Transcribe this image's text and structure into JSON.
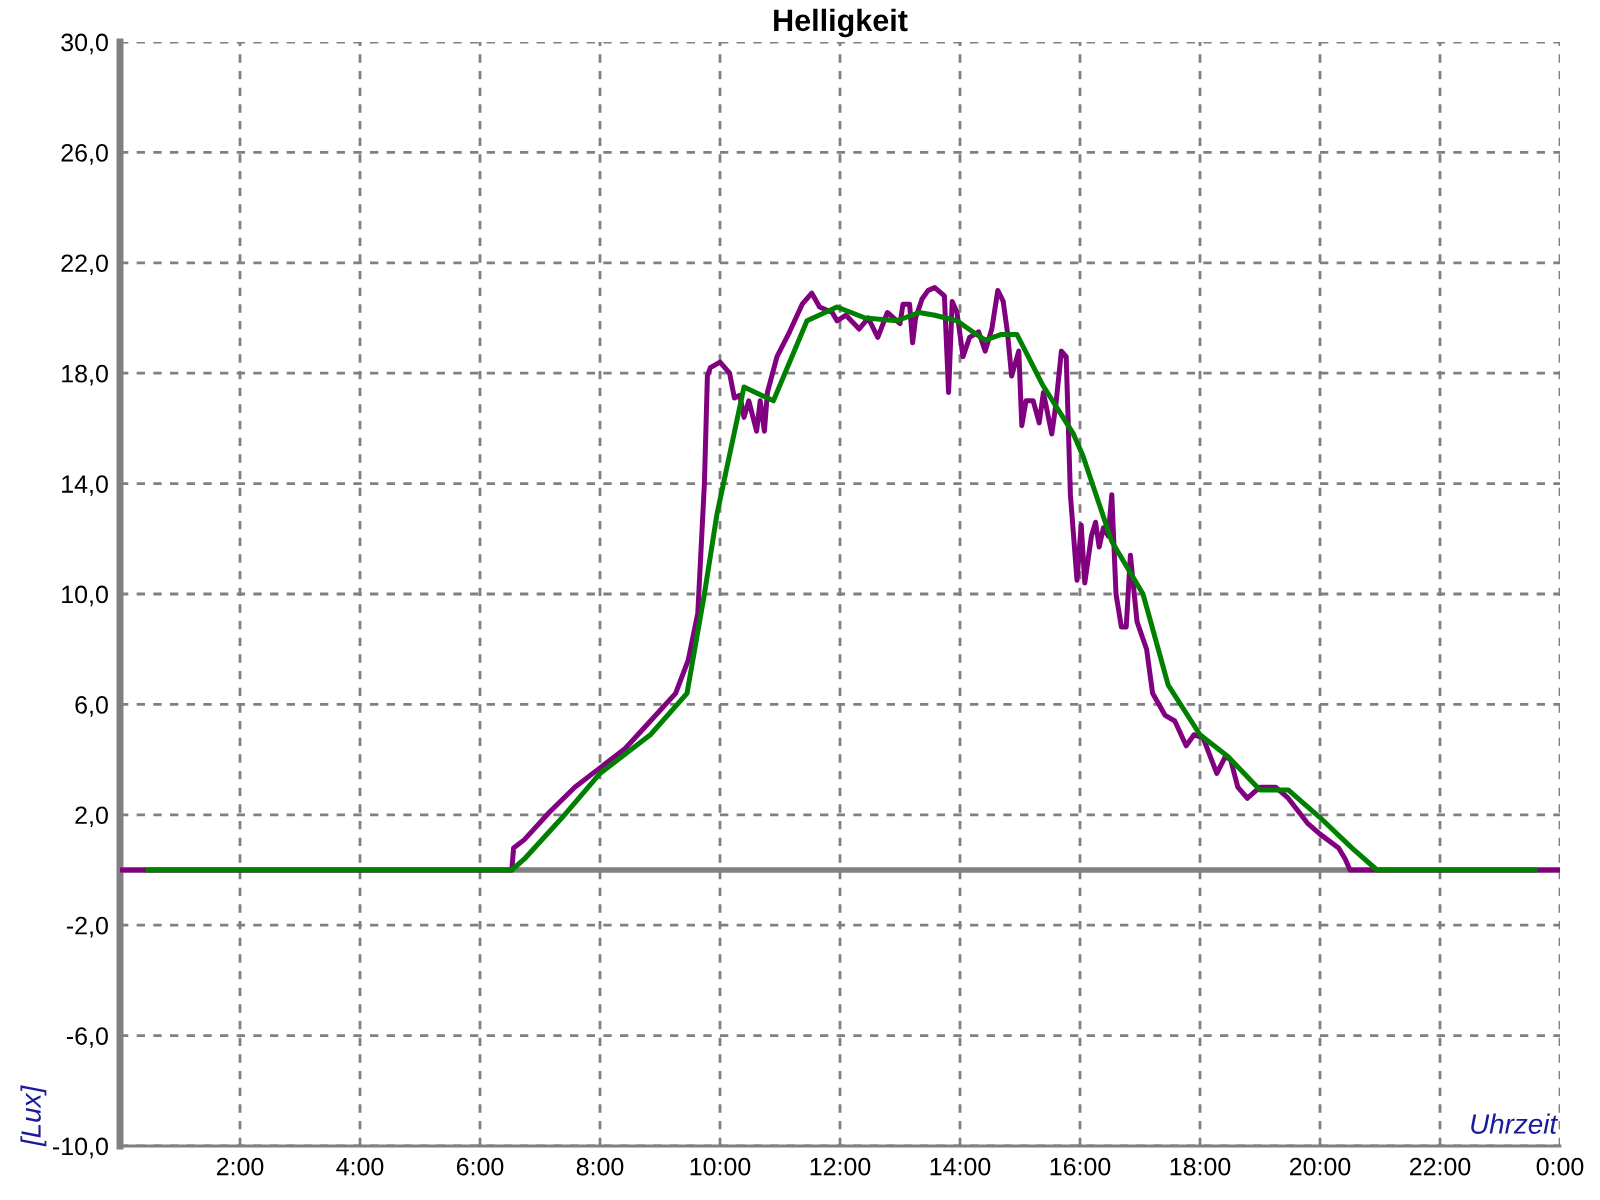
{
  "chart_data": {
    "type": "line",
    "title": "Helligkeit",
    "xlabel": "Uhrzeit",
    "ylabel": "[Lux]",
    "xlim": [
      0,
      24
    ],
    "ylim": [
      -10,
      30
    ],
    "xticks": [
      {
        "value": 0,
        "label": null
      },
      {
        "value": 2,
        "label": "2:00"
      },
      {
        "value": 4,
        "label": "4:00"
      },
      {
        "value": 6,
        "label": "6:00"
      },
      {
        "value": 8,
        "label": "8:00"
      },
      {
        "value": 10,
        "label": "10:00"
      },
      {
        "value": 12,
        "label": "12:00"
      },
      {
        "value": 14,
        "label": "14:00"
      },
      {
        "value": 16,
        "label": "16:00"
      },
      {
        "value": 18,
        "label": "18:00"
      },
      {
        "value": 20,
        "label": "20:00"
      },
      {
        "value": 22,
        "label": "22:00"
      },
      {
        "value": 24,
        "label": "0:00"
      }
    ],
    "yticks": [
      {
        "value": -10,
        "label": "-10,0"
      },
      {
        "value": -6,
        "label": "-6,0"
      },
      {
        "value": -2,
        "label": "-2,0"
      },
      {
        "value": 2,
        "label": "2,0"
      },
      {
        "value": 6,
        "label": "6,0"
      },
      {
        "value": 10,
        "label": "10,0"
      },
      {
        "value": 14,
        "label": "14,0"
      },
      {
        "value": 18,
        "label": "18,0"
      },
      {
        "value": 22,
        "label": "22,0"
      },
      {
        "value": 26,
        "label": "26,0"
      },
      {
        "value": 30,
        "label": "30,0"
      }
    ],
    "grid": true,
    "ref_lines": [
      {
        "axis": "y",
        "value": 0,
        "color": "#808080"
      }
    ],
    "series": [
      {
        "color": "#800080",
        "x": [
          0.0,
          6.53,
          6.56,
          6.74,
          7.16,
          7.58,
          8.0,
          8.42,
          8.84,
          9.26,
          9.47,
          9.63,
          9.74,
          9.79,
          9.84,
          10.0,
          10.16,
          10.24,
          10.33,
          10.4,
          10.48,
          10.61,
          10.67,
          10.74,
          10.79,
          10.95,
          11.16,
          11.37,
          11.53,
          11.66,
          11.87,
          11.95,
          12.1,
          12.32,
          12.47,
          12.63,
          12.79,
          13.0,
          13.05,
          13.16,
          13.21,
          13.26,
          13.37,
          13.47,
          13.58,
          13.74,
          13.81,
          13.87,
          13.95,
          14.05,
          14.16,
          14.31,
          14.42,
          14.53,
          14.63,
          14.72,
          14.79,
          14.86,
          14.98,
          15.03,
          15.1,
          15.22,
          15.32,
          15.39,
          15.53,
          15.6,
          15.69,
          15.77,
          15.84,
          15.95,
          16.02,
          16.08,
          16.19,
          16.26,
          16.32,
          16.39,
          16.47,
          16.53,
          16.6,
          16.69,
          16.77,
          16.84,
          16.95,
          17.11,
          17.21,
          17.42,
          17.58,
          17.77,
          17.9,
          18.05,
          18.28,
          18.42,
          18.51,
          18.63,
          18.79,
          19.0,
          19.26,
          19.47,
          19.79,
          20.0,
          20.31,
          20.42,
          20.5,
          24.0
        ],
        "values": [
          0,
          0,
          0.8,
          1.1,
          2.1,
          3.0,
          3.7,
          4.4,
          5.4,
          6.4,
          7.6,
          9.3,
          14.0,
          17.9,
          18.2,
          18.4,
          18.0,
          17.1,
          17.2,
          16.4,
          17.0,
          15.9,
          17.0,
          15.9,
          17.3,
          18.6,
          19.5,
          20.5,
          20.9,
          20.4,
          20.2,
          19.9,
          20.1,
          19.6,
          20.0,
          19.3,
          20.2,
          19.8,
          20.5,
          20.5,
          19.1,
          20.0,
          20.7,
          21.0,
          21.1,
          20.8,
          17.3,
          20.6,
          20.2,
          18.6,
          19.3,
          19.5,
          18.8,
          19.6,
          21.0,
          20.6,
          19.5,
          17.9,
          18.8,
          16.1,
          17.0,
          17.0,
          16.2,
          17.3,
          15.8,
          16.9,
          18.8,
          18.6,
          13.6,
          10.5,
          12.5,
          10.4,
          12.1,
          12.6,
          11.7,
          12.4,
          12.1,
          13.6,
          10.0,
          8.8,
          8.8,
          11.4,
          9.0,
          8.0,
          6.4,
          5.6,
          5.4,
          4.5,
          4.9,
          4.8,
          3.5,
          4.1,
          4.0,
          3.0,
          2.6,
          3.0,
          3.0,
          2.6,
          1.7,
          1.3,
          0.8,
          0.4,
          0,
          0
        ]
      },
      {
        "color": "#008000",
        "x": [
          0.47,
          6.53,
          6.74,
          7.37,
          8.0,
          8.84,
          9.45,
          9.74,
          9.95,
          10.4,
          10.89,
          11.45,
          11.95,
          12.42,
          12.95,
          13.32,
          13.58,
          13.95,
          14.21,
          14.42,
          14.68,
          14.95,
          15.37,
          15.89,
          16.05,
          16.53,
          17.05,
          17.47,
          18.0,
          18.47,
          19.0,
          19.47,
          20.0,
          20.53,
          20.95,
          23.58
        ],
        "values": [
          0,
          0,
          0.4,
          1.9,
          3.5,
          4.9,
          6.4,
          10.0,
          12.9,
          17.5,
          17.0,
          19.9,
          20.4,
          20.0,
          19.9,
          20.2,
          20.1,
          19.9,
          19.5,
          19.2,
          19.4,
          19.4,
          17.6,
          15.8,
          15.0,
          11.9,
          10.0,
          6.7,
          4.9,
          4.1,
          2.9,
          2.9,
          1.9,
          0.8,
          0,
          0
        ]
      }
    ]
  }
}
